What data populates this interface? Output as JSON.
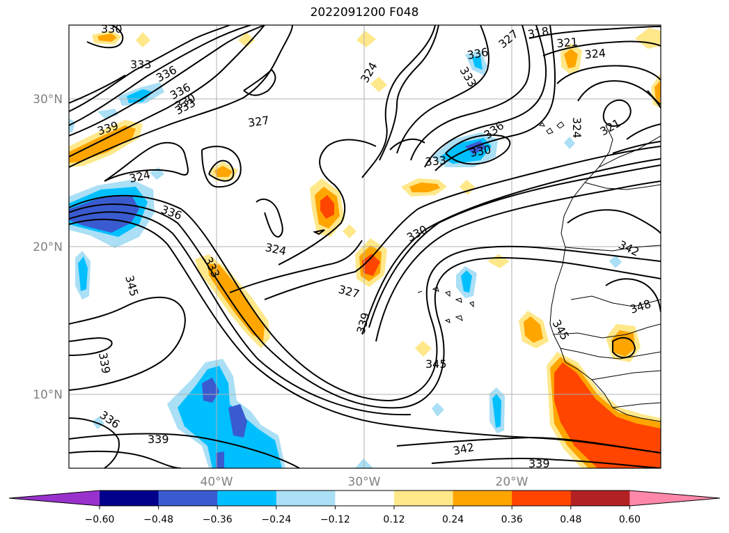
{
  "title": "2022091200 F048",
  "map": {
    "lat_ticks": [
      "30°N",
      "20°N",
      "10°N"
    ],
    "lon_ticks": [
      "40°W",
      "30°W",
      "20°W"
    ],
    "contour_labels": [
      "330",
      "333",
      "336",
      "336",
      "330",
      "333",
      "327",
      "324",
      "339",
      "324",
      "336",
      "324",
      "333",
      "345",
      "327",
      "330",
      "339",
      "345",
      "339",
      "336",
      "339",
      "342",
      "339",
      "342",
      "348",
      "345",
      "318",
      "321",
      "324",
      "327",
      "336",
      "333",
      "324",
      "321",
      "336",
      "330",
      "333"
    ]
  },
  "colorbar": {
    "ticks": [
      "−0.60",
      "−0.48",
      "−0.36",
      "−0.24",
      "−0.12",
      "0.12",
      "0.24",
      "0.36",
      "0.48",
      "0.60"
    ],
    "colors": [
      "#9932cc",
      "#00008b",
      "#3a5bd0",
      "#00bfff",
      "#aadff5",
      "#ffffff",
      "#ffe88a",
      "#ffa500",
      "#ff4500",
      "#b22222",
      "#ff88aa"
    ]
  },
  "colors": {
    "neg_light": "#aadff5",
    "neg_mid": "#00bfff",
    "neg_dark": "#3a5bd0",
    "pos_light": "#ffe88a",
    "pos_mid": "#ffa500",
    "pos_dark": "#ff4500",
    "grid": "#b0b0b0"
  }
}
